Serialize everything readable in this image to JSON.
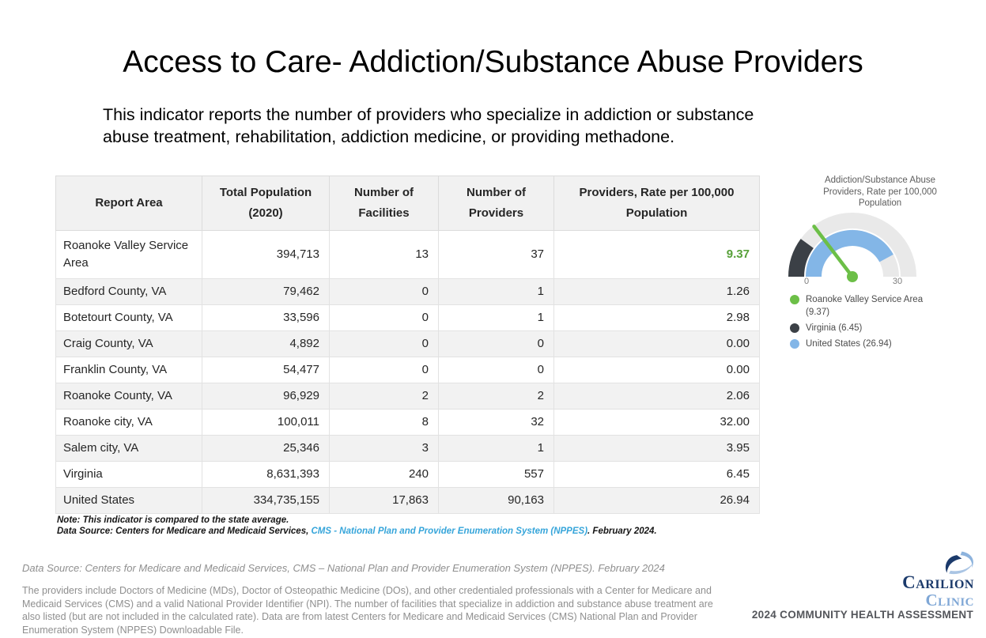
{
  "page": {
    "title": "Access to Care- Addiction/Substance Abuse Providers",
    "subtitle": "This indicator reports the number of providers who specialize in addiction or substance abuse treatment, rehabilitation, addiction medicine, or providing methadone.",
    "subtitle_lines": [
      "This indicator reports the number of providers who specialize in addiction or substance",
      "abuse treatment, rehabilitation, addiction medicine, or providing methadone."
    ]
  },
  "table": {
    "columns": [
      "Report Area",
      "Total Population (2020)",
      "Number of Facilities",
      "Number of Providers",
      "Providers, Rate per 100,000 Population"
    ],
    "rows": [
      {
        "area": "Roanoke Valley Service Area",
        "population": "394,713",
        "facilities": "13",
        "providers": "37",
        "rate": "9.37",
        "highlight": true
      },
      {
        "area": "Bedford County, VA",
        "population": "79,462",
        "facilities": "0",
        "providers": "1",
        "rate": "1.26"
      },
      {
        "area": "Botetourt County, VA",
        "population": "33,596",
        "facilities": "0",
        "providers": "1",
        "rate": "2.98"
      },
      {
        "area": "Craig County, VA",
        "population": "4,892",
        "facilities": "0",
        "providers": "0",
        "rate": "0.00"
      },
      {
        "area": "Franklin County, VA",
        "population": "54,477",
        "facilities": "0",
        "providers": "0",
        "rate": "0.00"
      },
      {
        "area": "Roanoke County, VA",
        "population": "96,929",
        "facilities": "2",
        "providers": "2",
        "rate": "2.06"
      },
      {
        "area": "Roanoke city, VA",
        "population": "100,011",
        "facilities": "8",
        "providers": "32",
        "rate": "32.00"
      },
      {
        "area": "Salem city, VA",
        "population": "25,346",
        "facilities": "3",
        "providers": "1",
        "rate": "3.95"
      },
      {
        "area": "Virginia",
        "population": "8,631,393",
        "facilities": "240",
        "providers": "557",
        "rate": "6.45"
      },
      {
        "area": "United States",
        "population": "334,735,155",
        "facilities": "17,863",
        "providers": "90,163",
        "rate": "26.94"
      }
    ]
  },
  "notes": {
    "note": "Note: This indicator is compared to the state average.",
    "data_source_prefix": "Data Source: Centers for Medicare and Medicaid Services, ",
    "data_source_link": "CMS - National Plan and Provider Enumeration System (NPPES)",
    "data_source_suffix": ". February 2024."
  },
  "chart_data": {
    "type": "gauge",
    "title": "Addiction/Substance Abuse Providers, Rate per 100,000 Population",
    "title_lines": [
      "Addiction/Substance Abuse",
      "Providers, Rate per 100,000",
      "Population"
    ],
    "min": 0,
    "max": 32,
    "tick_labels": [
      "0",
      "30"
    ],
    "track_color": "#e9e9e9",
    "needle": {
      "name": "Roanoke Valley Service Area",
      "value": 9.37,
      "color": "#6cbf47"
    },
    "arcs": [
      {
        "name": "Virginia",
        "value": 6.45,
        "ring": "outer",
        "color": "#3b4046"
      },
      {
        "name": "United States",
        "value": 26.94,
        "ring": "inner",
        "color": "#83b6e7"
      }
    ],
    "legend": [
      {
        "label": "Roanoke Valley Service Area (9.37)",
        "color": "#6cbf47"
      },
      {
        "label": "Virginia (6.45)",
        "color": "#3b4046"
      },
      {
        "label": "United States (26.94)",
        "color": "#83b6e7"
      }
    ],
    "legend_position": "bottom"
  },
  "footer": {
    "data_source_line": "Data Source: Centers for Medicare and Medicaid Services, CMS – National Plan and Provider Enumeration System (NPPES). February 2024",
    "description": "The providers include Doctors of Medicine (MDs), Doctor of Osteopathic Medicine (DOs), and other credentialed professionals with a Center for Medicare and Medicaid Services (CMS) and a valid National Provider Identifier (NPI). The number of facilities that specialize in addiction and substance abuse treatment are also listed (but are not included in the calculated rate). Data are from latest Centers for Medicare and Medicaid Services (CMS) National Plan and Provider Enumeration System (NPPES) Downloadable File.",
    "logo_line1": "Carilion",
    "logo_line2": "Clinic",
    "assessment": "2024 COMMUNITY HEALTH ASSESSMENT"
  },
  "colors": {
    "table_rate_green": "#57a039",
    "gauge_green": "#6cbf47",
    "gauge_dark": "#3b4046",
    "gauge_blue": "#83b6e7",
    "gauge_track": "#e9e9e9",
    "link_blue": "#36a5da",
    "logo_navy": "#1b3a6b",
    "logo_light_blue": "#7fa7d6",
    "muted_gray": "#8f8f8f"
  }
}
